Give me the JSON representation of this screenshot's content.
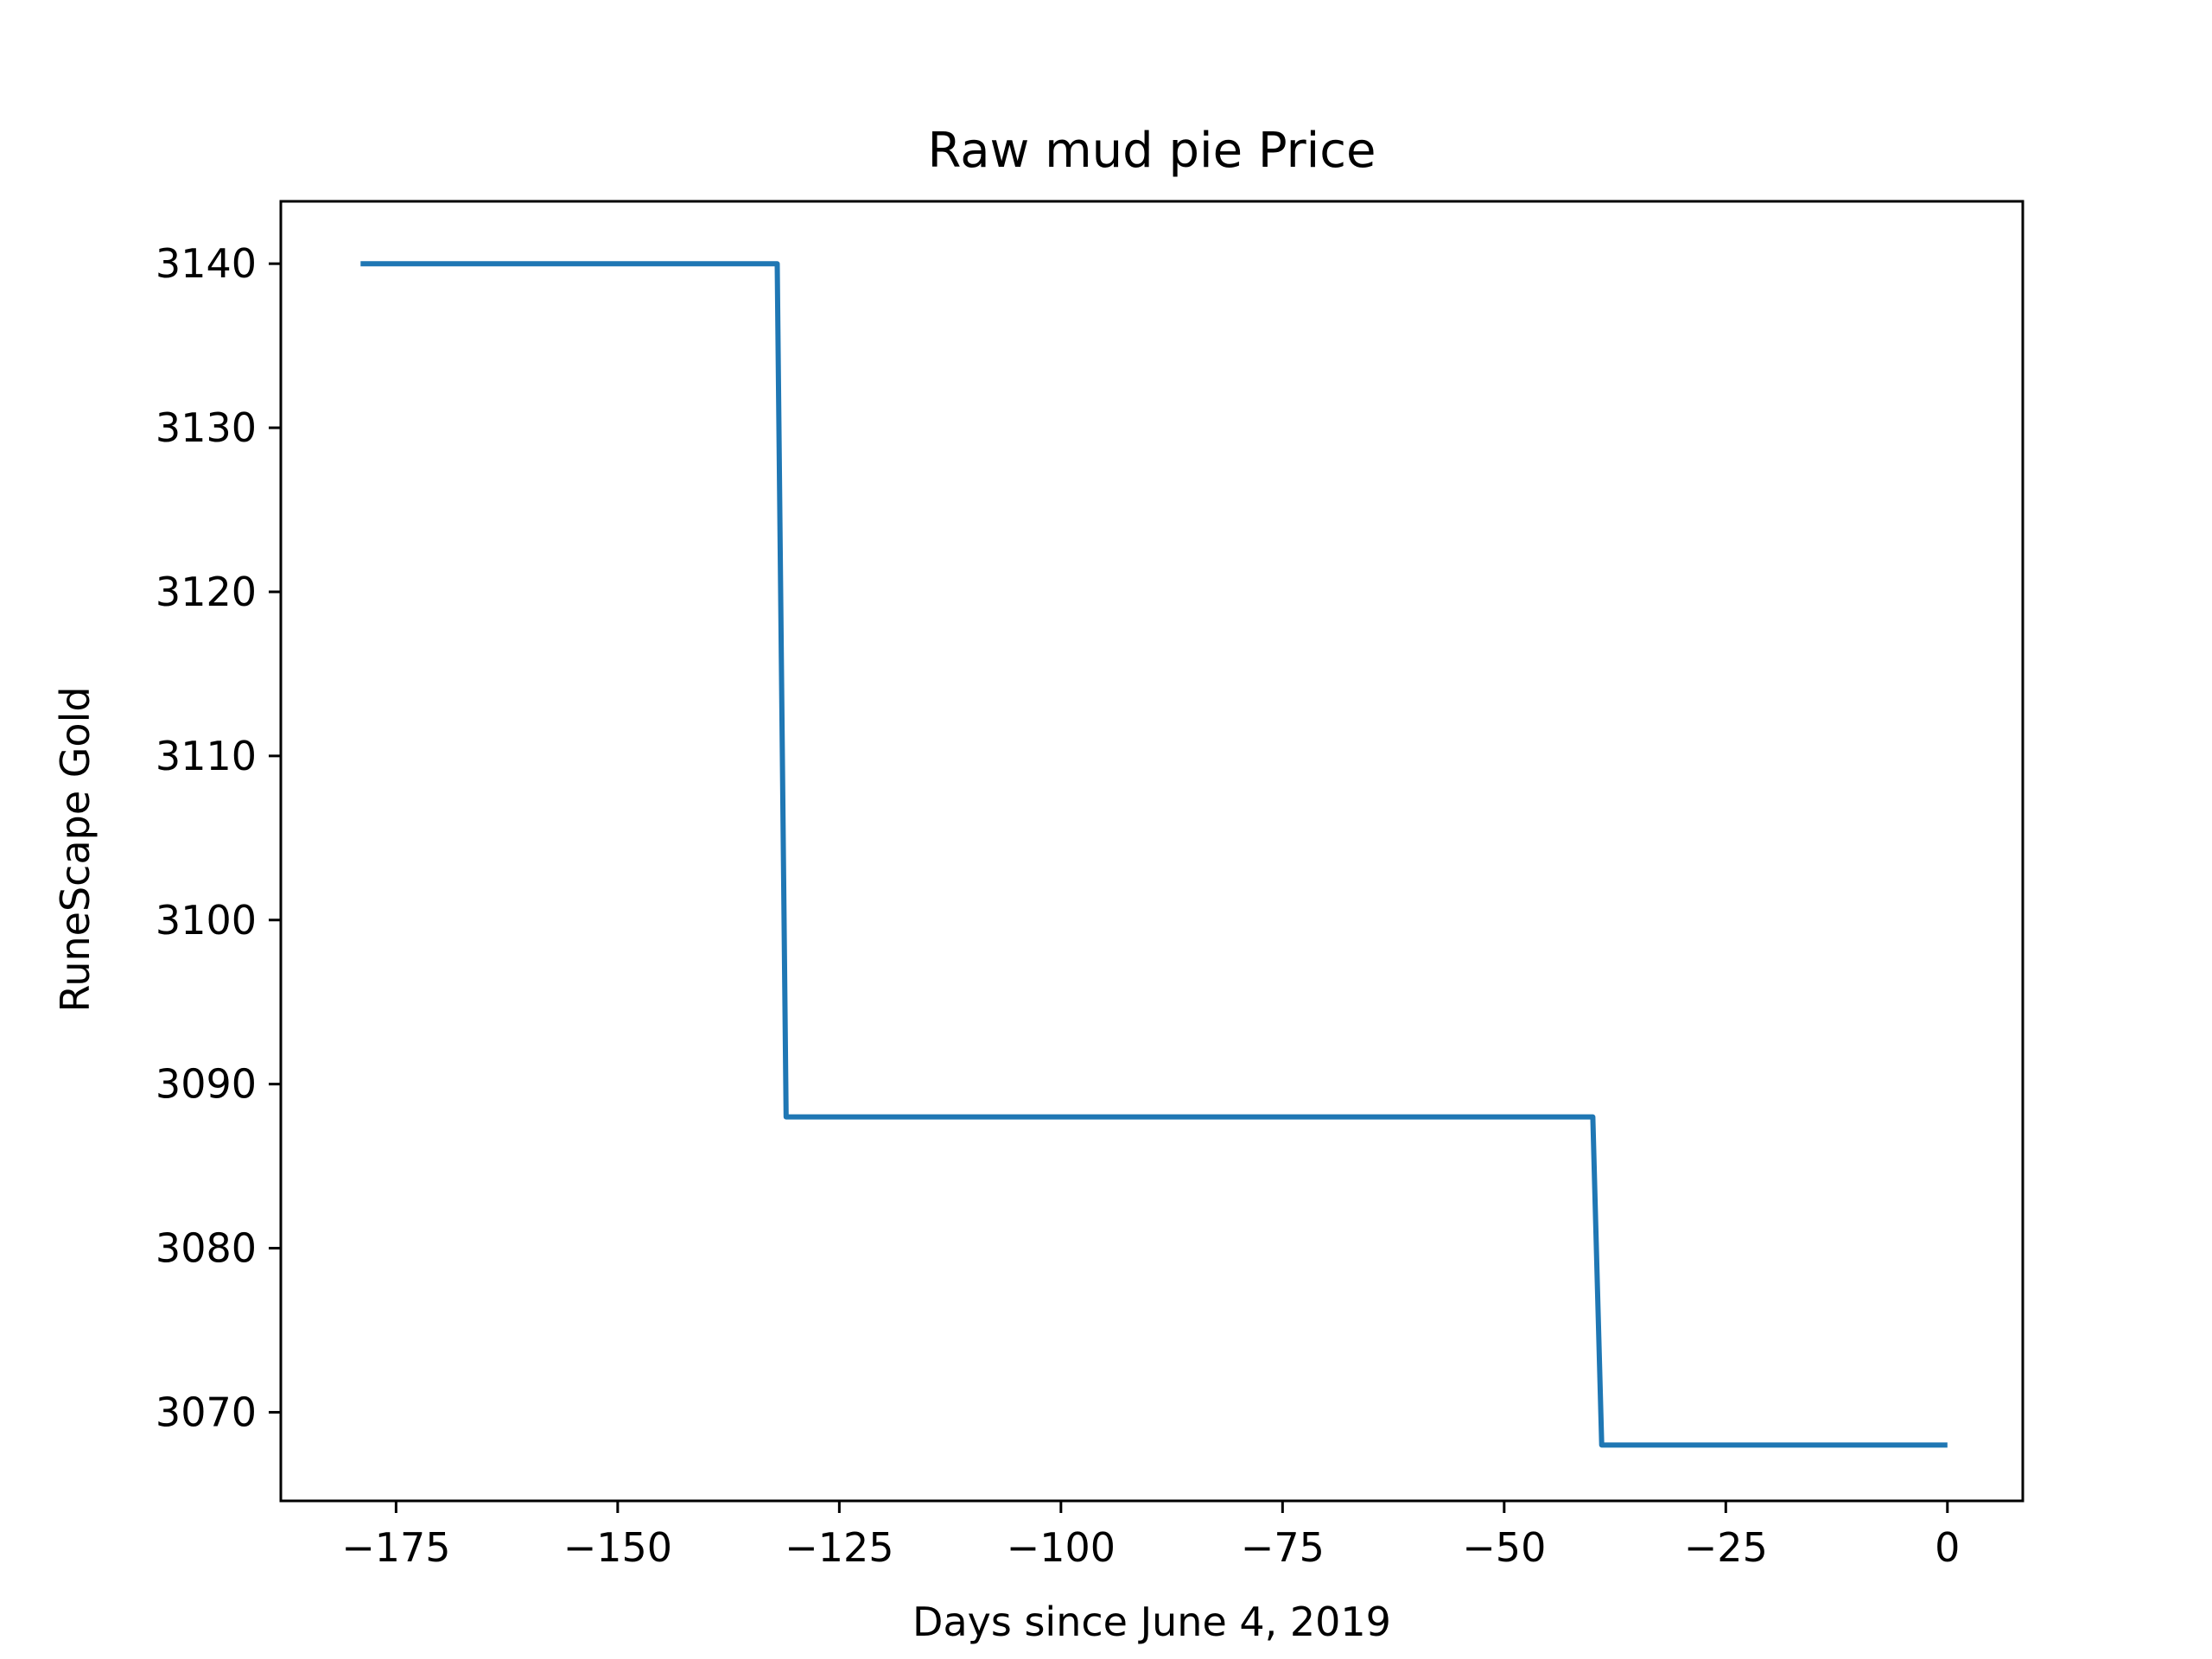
{
  "chart_data": {
    "type": "line",
    "title": "Raw mud pie Price",
    "xlabel": "Days since June 4, 2019",
    "ylabel": "RuneScape Gold",
    "xlim": [
      -188,
      8.5
    ],
    "ylim": [
      3064.6,
      3143.8
    ],
    "xticks": [
      -175,
      -150,
      -125,
      -100,
      -75,
      -50,
      -25,
      0
    ],
    "xtick_labels": [
      "−175",
      "−150",
      "−125",
      "−100",
      "−75",
      "−50",
      "−25",
      "0"
    ],
    "yticks": [
      3070,
      3080,
      3090,
      3100,
      3110,
      3120,
      3130,
      3140
    ],
    "ytick_labels": [
      "3070",
      "3080",
      "3090",
      "3100",
      "3110",
      "3120",
      "3130",
      "3140"
    ],
    "grid": false,
    "line_color": "#1f77b4",
    "series": [
      {
        "x": [
          -179,
          -132,
          -131,
          -40,
          -39,
          0
        ],
        "y": [
          3140,
          3140,
          3088,
          3088,
          3068,
          3068
        ]
      }
    ]
  }
}
